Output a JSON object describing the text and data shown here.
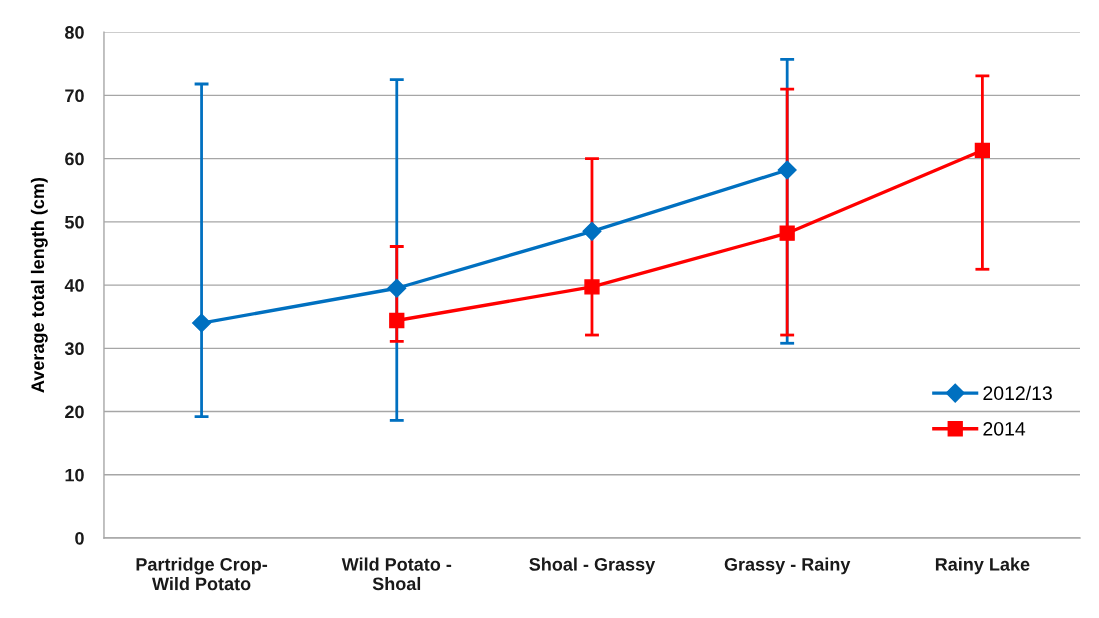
{
  "chart_data": {
    "type": "line",
    "ylabel": "Average total length (cm)",
    "categories": [
      "Partridge Crop-\nWild Potato",
      "Wild Potato -\nShoal",
      "Shoal - Grassy",
      "Grassy - Rainy",
      "Rainy Lake"
    ],
    "series": [
      {
        "name": "2012/13",
        "color": "#0070c0",
        "marker": "diamond",
        "values": [
          34.0,
          39.5,
          48.5,
          58.2,
          null
        ],
        "errors": [
          [
            19.2,
            71.8
          ],
          [
            18.6,
            72.5
          ],
          null,
          [
            30.8,
            75.7
          ],
          null
        ]
      },
      {
        "name": "2014",
        "color": "#ff0000",
        "marker": "square",
        "values": [
          null,
          34.4,
          39.7,
          48.2,
          61.3
        ],
        "errors": [
          null,
          [
            31.1,
            46.1
          ],
          [
            32.1,
            60.0
          ],
          [
            32.1,
            71.0
          ],
          [
            42.5,
            73.1
          ]
        ]
      }
    ],
    "ylim": [
      0,
      80
    ],
    "yticks": [
      0,
      10,
      20,
      30,
      40,
      50,
      60,
      70,
      80
    ],
    "grid": "y",
    "legend": "lower right",
    "line_style": "solid"
  }
}
